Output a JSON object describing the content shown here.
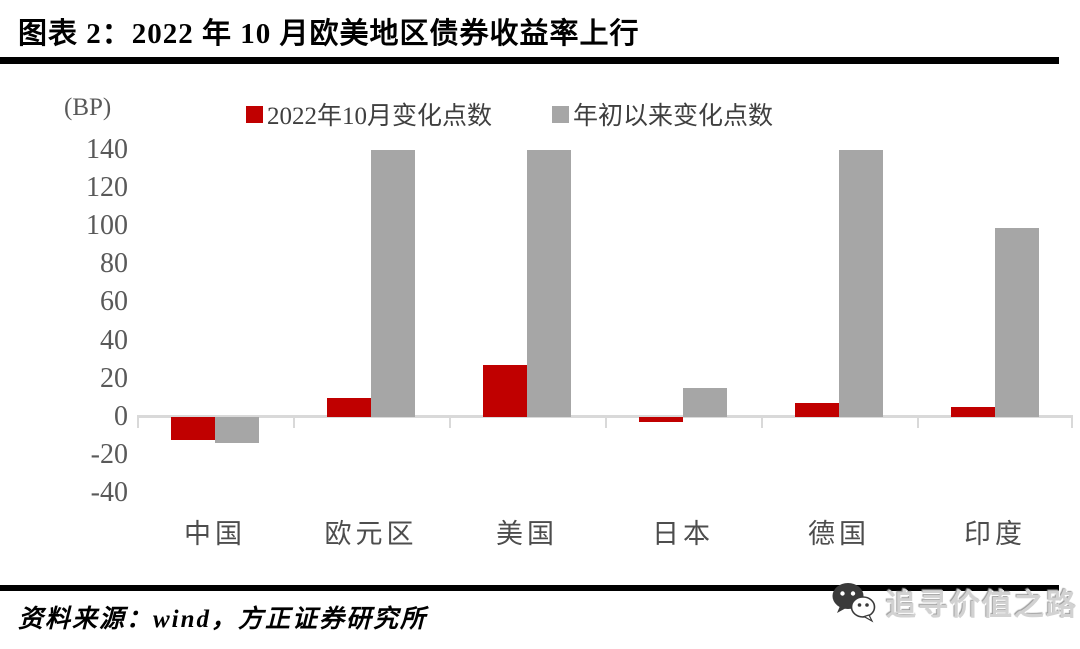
{
  "header": {
    "title": "图表 2：2022 年 10 月欧美地区债券收益率上行"
  },
  "chart_data": {
    "type": "bar",
    "title": "2022 年 10 月欧美地区债券收益率上行",
    "unit_label": "(BP)",
    "categories": [
      "中国",
      "欧元区",
      "美国",
      "日本",
      "德国",
      "印度"
    ],
    "series": [
      {
        "name": "2022年10月变化点数",
        "color": "#c00000",
        "values": [
          -12,
          10,
          27,
          -3,
          7,
          5
        ]
      },
      {
        "name": "年初以来变化点数",
        "color": "#a6a6a6",
        "values": [
          -14,
          140,
          140,
          15,
          140,
          99
        ]
      }
    ],
    "ylim": [
      -40,
      140
    ],
    "ytick_step": 20,
    "yticks": [
      140,
      120,
      100,
      80,
      60,
      40,
      20,
      0,
      -20,
      -40
    ],
    "grid": false,
    "legend_position": "top",
    "xlabel": "",
    "ylabel": "(BP)"
  },
  "footer": {
    "source": "资料来源：wind，方正证券研究所",
    "watermark": "追寻价值之路"
  },
  "colors": {
    "series_red": "#c00000",
    "series_gray": "#a6a6a6",
    "axis_line": "#d9d9d9",
    "tick_text": "#595959",
    "rule_black": "#000000"
  }
}
